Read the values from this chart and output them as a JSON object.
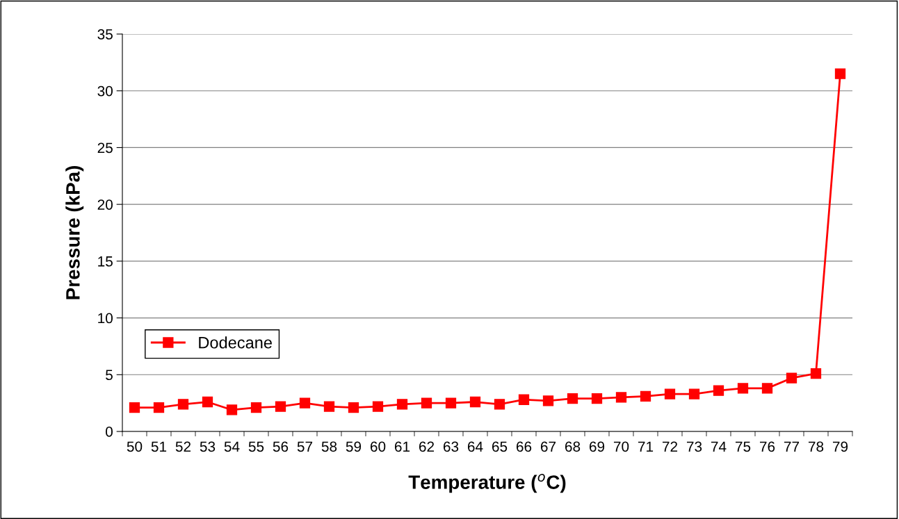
{
  "chart_data": {
    "type": "line",
    "xlabel": "Temperature ($^{o}$C)",
    "ylabel": "Pressure (kPa)",
    "categories": [
      "50",
      "51",
      "52",
      "53",
      "54",
      "55",
      "56",
      "57",
      "58",
      "59",
      "60",
      "61",
      "62",
      "63",
      "64",
      "65",
      "66",
      "67",
      "68",
      "69",
      "70",
      "71",
      "72",
      "73",
      "74",
      "75",
      "76",
      "77",
      "78",
      "79"
    ],
    "series": [
      {
        "name": "Dodecane",
        "color": "#ff0000",
        "values": [
          2.1,
          2.1,
          2.4,
          2.6,
          1.9,
          2.1,
          2.2,
          2.5,
          2.2,
          2.1,
          2.2,
          2.4,
          2.5,
          2.5,
          2.6,
          2.4,
          2.8,
          2.7,
          2.9,
          2.9,
          3.0,
          3.1,
          3.3,
          3.3,
          3.6,
          3.8,
          3.8,
          4.7,
          5.1,
          31.5
        ]
      }
    ],
    "ylim": [
      0,
      35
    ],
    "yticks": [
      0,
      5,
      10,
      15,
      20,
      25,
      30,
      35
    ],
    "grid": "y",
    "legend": "left",
    "marker": "square",
    "line_style": "solid"
  }
}
